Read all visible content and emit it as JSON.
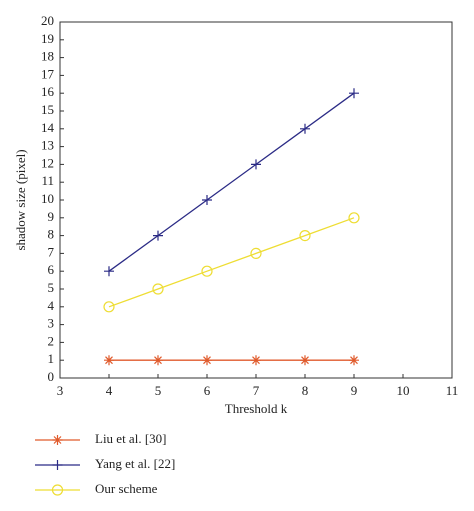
{
  "chart_data": {
    "type": "line",
    "x": [
      4,
      5,
      6,
      7,
      8,
      9
    ],
    "series": [
      {
        "name": "Liu et al. [30]",
        "color": "#e05a2b",
        "marker": "star",
        "values": [
          1,
          1,
          1,
          1,
          1,
          1
        ]
      },
      {
        "name": "Yang et al. [22]",
        "color": "#2b2b86",
        "marker": "plus",
        "values": [
          6,
          8,
          10,
          12,
          14,
          16
        ]
      },
      {
        "name": "Our scheme",
        "color": "#eedd33",
        "marker": "circle",
        "values": [
          4,
          5,
          6,
          7,
          8,
          9
        ]
      }
    ],
    "xlabel": "Threshold k",
    "ylabel": "shadow size (pixel)",
    "xlim": [
      3,
      11
    ],
    "xticks": [
      3,
      4,
      5,
      6,
      7,
      8,
      9,
      10,
      11
    ],
    "ylim": [
      0,
      20
    ],
    "yticks": [
      0,
      1,
      2,
      3,
      4,
      5,
      6,
      7,
      8,
      9,
      10,
      11,
      12,
      13,
      14,
      15,
      16,
      17,
      18,
      19,
      20
    ],
    "legend": "bottom"
  }
}
